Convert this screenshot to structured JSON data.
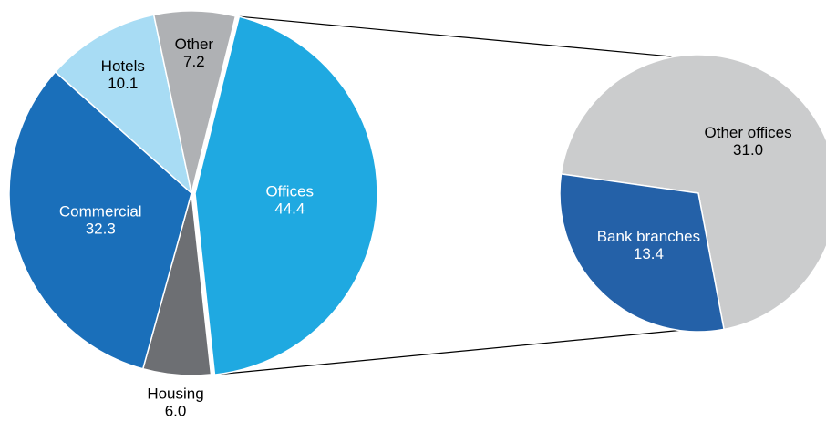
{
  "chart_data": [
    {
      "type": "pie",
      "categories": [
        "Offices",
        "Housing",
        "Commercial",
        "Hotels",
        "Other"
      ],
      "values": [
        44.4,
        6.0,
        32.3,
        10.1,
        7.2
      ],
      "labels": [
        "44.4",
        "6.0",
        "32.3",
        "10.1",
        "7.2"
      ],
      "colors": [
        "#1fa9e1",
        "#6d6f73",
        "#1a6fba",
        "#a8dcf4",
        "#afb1b4"
      ],
      "label_colors": [
        "#ffffff",
        "#000000",
        "#ffffff",
        "#000000",
        "#000000"
      ],
      "exploded_category": "Offices"
    },
    {
      "type": "pie",
      "categories": [
        "Other offices",
        "Bank branches"
      ],
      "values": [
        31.0,
        13.4
      ],
      "labels": [
        "31.0",
        "13.4"
      ],
      "colors": [
        "#cbcccd",
        "#2461a8"
      ],
      "label_colors": [
        "#000000",
        "#ffffff"
      ]
    }
  ]
}
